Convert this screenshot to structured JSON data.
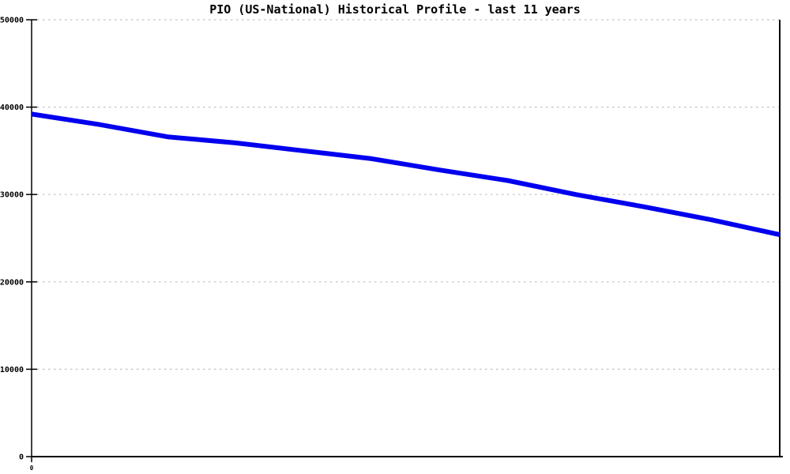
{
  "title": "PIO (US-National) Historical Profile - last 11 years",
  "colors": {
    "background": "#FFFFFF",
    "line": "#0000EE",
    "grid": "#C0C0C0",
    "axis": "#000000",
    "text": "#000000"
  },
  "y_axis": {
    "tick_labels": [
      "0",
      "10000",
      "20000",
      "30000",
      "40000",
      "50000"
    ],
    "tick_values": [
      0,
      10000,
      20000,
      30000,
      40000,
      50000
    ],
    "min": 0,
    "max": 50000,
    "step": 10000
  },
  "x_axis": {
    "tick_labels": [
      "0"
    ],
    "tick_values": [
      0
    ]
  },
  "chart_data": {
    "type": "line",
    "title": "PIO (US-National) Historical Profile - last 11 years",
    "x": [
      0,
      1,
      2,
      3,
      4,
      5,
      6,
      7,
      8,
      9,
      10,
      11
    ],
    "series": [
      {
        "name": "PIO (US-National)",
        "color": "#0000EE",
        "values": [
          39200,
          38000,
          36600,
          35900,
          35000,
          34100,
          32800,
          31600,
          30000,
          28600,
          27100,
          25400
        ]
      }
    ],
    "xlabel": "",
    "ylabel": "",
    "ylim": [
      0,
      50000
    ],
    "xlim": [
      0,
      11
    ],
    "grid": "horizontal-dashed",
    "legend": "none",
    "line_width": 6
  }
}
